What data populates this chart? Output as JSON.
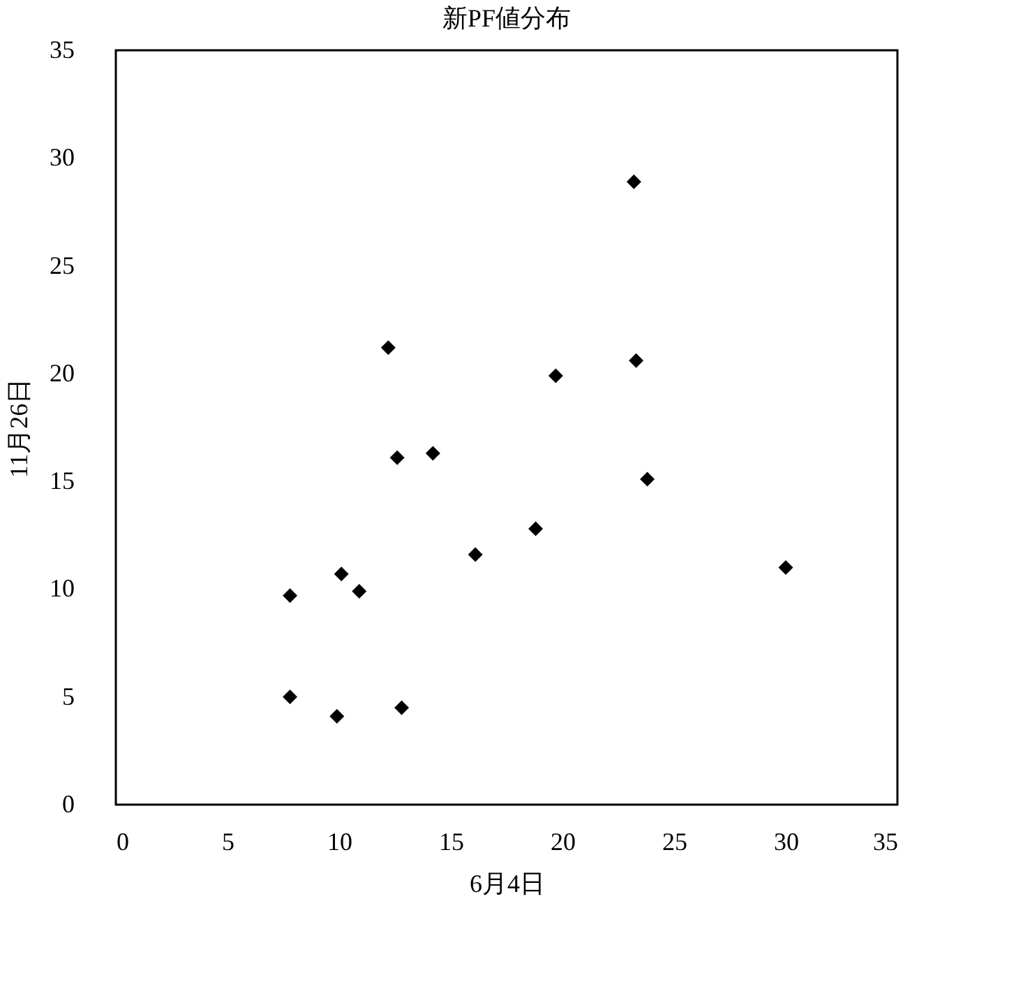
{
  "chart_data": {
    "type": "scatter",
    "title": "新PF値分布",
    "xlabel": "6月4日",
    "ylabel": "11月26日",
    "x": [
      7.8,
      7.8,
      9.9,
      10.1,
      10.9,
      12.2,
      12.6,
      12.8,
      14.2,
      16.1,
      18.8,
      19.7,
      23.2,
      23.3,
      23.8,
      30.0
    ],
    "series": [
      {
        "color": "#000000",
        "values": [
          9.7,
          5.0,
          4.1,
          10.7,
          9.9,
          21.2,
          16.1,
          4.5,
          16.3,
          11.6,
          12.8,
          19.9,
          28.9,
          20.6,
          15.1,
          11.0
        ]
      }
    ],
    "xlim": [
      0,
      35
    ],
    "xticks": [
      0,
      5,
      10,
      15,
      20,
      25,
      30,
      35
    ],
    "ylim": [
      0,
      35
    ],
    "yticks": [
      0,
      5,
      10,
      15,
      20,
      25,
      30,
      35
    ],
    "marker": "diamond",
    "grid": false
  }
}
